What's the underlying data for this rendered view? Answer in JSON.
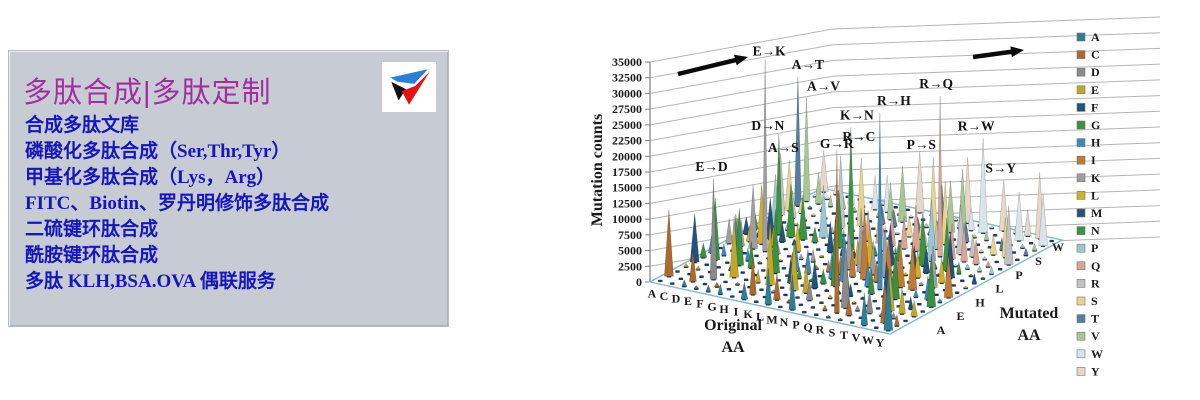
{
  "promo_box": {
    "title": "多肽合成|多肽定制",
    "title_color": "#a12f9f",
    "text_color": "#1717b8",
    "background": "#c7ccd4",
    "logo_icon": "triangle-3d-logo",
    "items": [
      "合成多肽文库",
      "磷酸化多肽合成（Ser,Thr,Tyr）",
      "甲基化多肽合成（Lys，Arg）",
      "FITC、Biotin、罗丹明修饰多肽合成",
      "二硫键环肽合成",
      "酰胺键环肽合成",
      "多肽 KLH,BSA.OVA 偶联服务"
    ]
  },
  "chart_data": {
    "type": "3d-spike",
    "title": "",
    "ylabel": "Mutation counts",
    "xlabel": "Original AA",
    "zlabel": "Mutated AA",
    "ylim": [
      0,
      35000
    ],
    "ytick_step": 2500,
    "yticks": [
      35000,
      32500,
      30000,
      27500,
      25000,
      22500,
      20000,
      17500,
      15000,
      12500,
      10000,
      7500,
      5000,
      2500,
      0
    ],
    "x_categories": [
      "A",
      "C",
      "D",
      "E",
      "F",
      "G",
      "H",
      "I",
      "K",
      "L",
      "M",
      "N",
      "P",
      "Q",
      "R",
      "S",
      "T",
      "V",
      "W",
      "Y"
    ],
    "z_categories": [
      "A",
      "C",
      "D",
      "E",
      "F",
      "G",
      "H",
      "I",
      "K",
      "L",
      "M",
      "N",
      "P",
      "Q",
      "R",
      "S",
      "T",
      "V",
      "W",
      "Y"
    ],
    "z_axis_visible_labels": [
      "A",
      "E",
      "H",
      "L",
      "P",
      "S",
      "W"
    ],
    "grid": true,
    "legend_position": "right",
    "series_color_by": "mutated-AA",
    "legend": [
      {
        "label": "A",
        "color": "#2e7f96"
      },
      {
        "label": "C",
        "color": "#ad6a2e"
      },
      {
        "label": "D",
        "color": "#8a8a8a"
      },
      {
        "label": "E",
        "color": "#c0a62c"
      },
      {
        "label": "F",
        "color": "#24527e"
      },
      {
        "label": "G",
        "color": "#3b8f41"
      },
      {
        "label": "H",
        "color": "#3d89ba"
      },
      {
        "label": "I",
        "color": "#bd7b35"
      },
      {
        "label": "K",
        "color": "#9e9e9e"
      },
      {
        "label": "L",
        "color": "#cfae2b"
      },
      {
        "label": "M",
        "color": "#27507b"
      },
      {
        "label": "N",
        "color": "#3f9144"
      },
      {
        "label": "P",
        "color": "#9cc7d0"
      },
      {
        "label": "Q",
        "color": "#d8a493"
      },
      {
        "label": "R",
        "color": "#c2c2c2"
      },
      {
        "label": "S",
        "color": "#e7d492"
      },
      {
        "label": "T",
        "color": "#557f9e"
      },
      {
        "label": "V",
        "color": "#a6c793"
      },
      {
        "label": "W",
        "color": "#d9e4ea"
      },
      {
        "label": "Y",
        "color": "#e5d8c9"
      }
    ],
    "annotated_peaks": [
      {
        "label": "E→K",
        "original": "E",
        "mutated": "K",
        "value": 30500
      },
      {
        "label": "A→T",
        "original": "A",
        "mutated": "T",
        "value": 20500
      },
      {
        "label": "A→V",
        "original": "A",
        "mutated": "V",
        "value": 16500
      },
      {
        "label": "D→N",
        "original": "D",
        "mutated": "N",
        "value": 16000
      },
      {
        "label": "A→S",
        "original": "A",
        "mutated": "S",
        "value": 8000
      },
      {
        "label": "G→R",
        "original": "G",
        "mutated": "R",
        "value": 11500
      },
      {
        "label": "K→N",
        "original": "K",
        "mutated": "N",
        "value": 19500
      },
      {
        "label": "R→C",
        "original": "R",
        "mutated": "C",
        "value": 26000
      },
      {
        "label": "E→D",
        "original": "E",
        "mutated": "D",
        "value": 16000
      },
      {
        "label": "R→Q",
        "original": "R",
        "mutated": "Q",
        "value": 25500
      },
      {
        "label": "R→H",
        "original": "R",
        "mutated": "H",
        "value": 28000
      },
      {
        "label": "P→S",
        "original": "P",
        "mutated": "S",
        "value": 13500
      },
      {
        "label": "R→W",
        "original": "R",
        "mutated": "W",
        "value": 15000
      },
      {
        "label": "S→Y",
        "original": "S",
        "mutated": "Y",
        "value": 8000
      }
    ],
    "icons": {
      "direction_arrows": "black-right-arrow-icon (two, above back wall)"
    }
  }
}
